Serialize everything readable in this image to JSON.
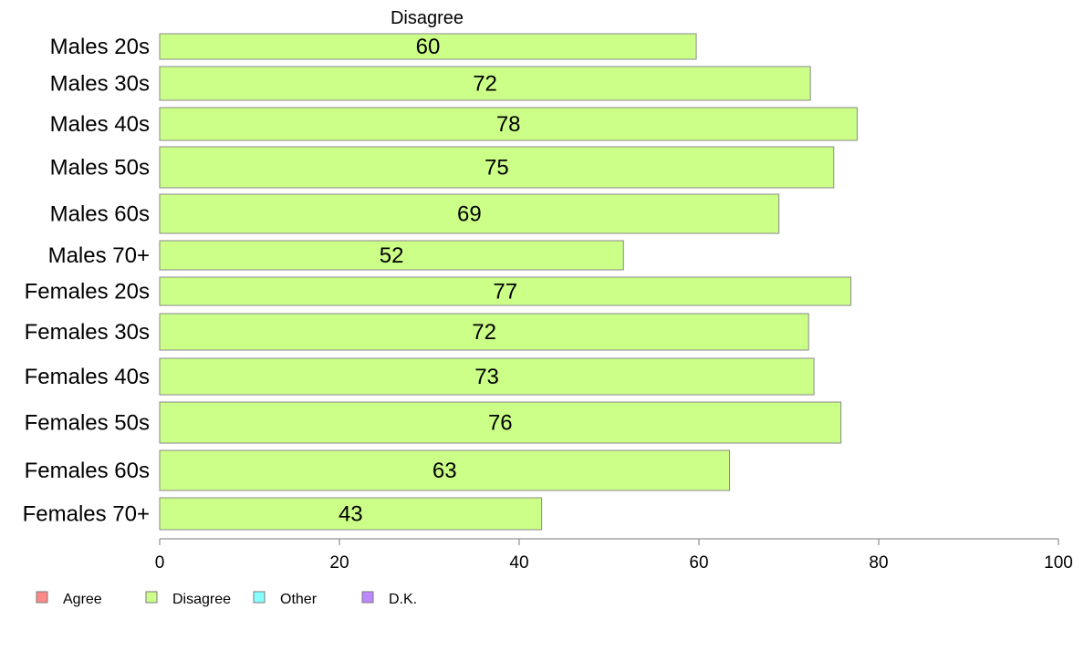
{
  "chart_data": {
    "type": "bar",
    "orientation": "horizontal",
    "title": "Disagree",
    "categories": [
      "Males 20s",
      "Males 30s",
      "Males 40s",
      "Males 50s",
      "Males 60s",
      "Males 70+",
      "Females 20s",
      "Females 30s",
      "Females 40s",
      "Females 50s",
      "Females 60s",
      "Females 70+"
    ],
    "series": [
      {
        "name": "Disagree",
        "color": "#ccff88",
        "values": [
          60,
          72,
          78,
          75,
          69,
          52,
          77,
          72,
          73,
          76,
          63,
          43
        ],
        "bar_values": [
          59.7,
          72.4,
          77.6,
          75.0,
          68.9,
          51.6,
          76.9,
          72.2,
          72.8,
          75.8,
          63.4,
          42.5
        ]
      }
    ],
    "xlim": [
      0,
      100
    ],
    "xticks": [
      0,
      20,
      40,
      60,
      80,
      100
    ],
    "xlabel": "",
    "ylabel": "",
    "grid": false,
    "legend": {
      "placement": "bottom-left",
      "entries": [
        {
          "label": "Agree",
          "color": "#ff8888"
        },
        {
          "label": "Disagree",
          "color": "#ccff88"
        },
        {
          "label": "Other",
          "color": "#88ffff"
        },
        {
          "label": "D.K.",
          "color": "#bb88ff"
        }
      ]
    }
  }
}
